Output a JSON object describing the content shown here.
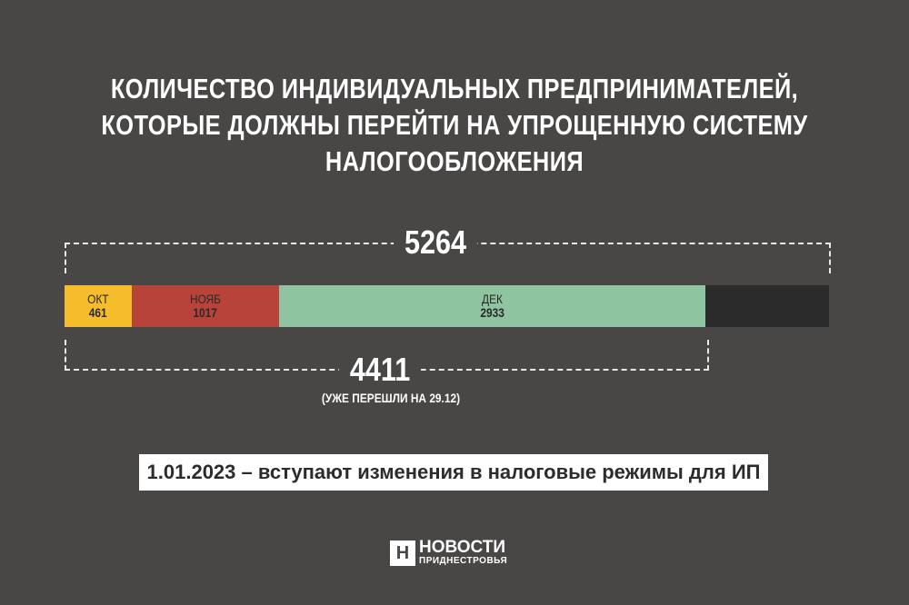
{
  "title": [
    "КОЛИЧЕСТВО ИНДИВИДУАЛЬНЫХ ПРЕДПРИНИМАТЕЛЕЙ,",
    "КОТОРЫЕ ДОЛЖНЫ ПЕРЕЙТИ НА УПРОЩЕННУЮ СИСТЕМУ",
    "НАЛОГООБЛОЖЕНИЯ"
  ],
  "chart_data": {
    "type": "bar",
    "orientation": "horizontal-stacked",
    "total": "5264",
    "subtotal": "4411",
    "subtotal_note": "(УЖЕ ПЕРЕШЛИ НА 29.12)",
    "categories": [
      "ОКТ",
      "НОЯБ",
      "ДЕК"
    ],
    "values": [
      461,
      1017,
      2933
    ],
    "colors": [
      "#f5bd2c",
      "#b8433a",
      "#8ec5a0"
    ],
    "remainder_color": "#2b2b2b"
  },
  "banner": "1.01.2023 – вступают изменения в налоговые режимы для ИП",
  "logo": {
    "mark": "Н",
    "line1": "НОВОСТИ",
    "line2": "ПРИДНЕСТРОВЬЯ"
  }
}
